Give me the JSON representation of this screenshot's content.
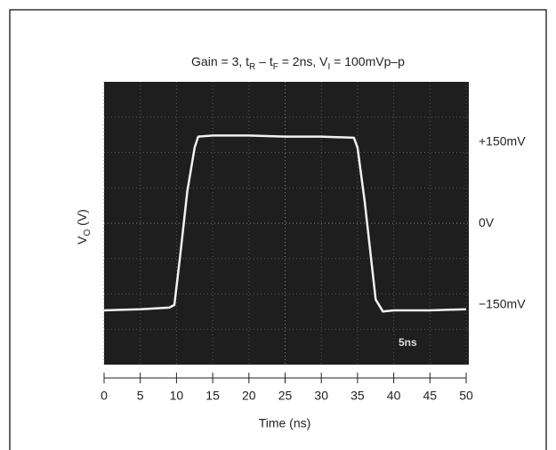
{
  "chart_data": {
    "type": "line",
    "title": [
      "Gain = 3, t",
      "R",
      " – t",
      "F",
      " = 2ns, V",
      "I",
      " = 100mVp–p"
    ],
    "ylabel": [
      "V",
      "O",
      " (V)"
    ],
    "xlabel": "Time (ns)",
    "annotation": "5ns",
    "x": [
      0,
      5,
      9,
      9.7,
      10.5,
      11.5,
      12.5,
      13,
      15,
      20,
      25,
      30,
      34.5,
      35,
      36,
      37,
      37.5,
      38.5,
      40,
      45,
      50
    ],
    "series": [
      {
        "color": "#f2f2f2",
        "values": [
          -160,
          -158,
          -155,
          -150,
          -60,
          60,
          140,
          160,
          162,
          162,
          160,
          160,
          158,
          140,
          40,
          -80,
          -140,
          -162,
          -160,
          -160,
          -158
        ]
      }
    ],
    "xlim": [
      0,
      50
    ],
    "xticks": [
      0,
      5,
      10,
      15,
      20,
      25,
      30,
      35,
      40,
      45,
      50
    ],
    "ylim": [
      -260,
      261
    ],
    "yticks": [
      {
        "value": 150,
        "label": "+150mV"
      },
      {
        "value": 0,
        "label": "0V"
      },
      {
        "value": -150,
        "label": "−150mV"
      }
    ],
    "grid": true
  }
}
